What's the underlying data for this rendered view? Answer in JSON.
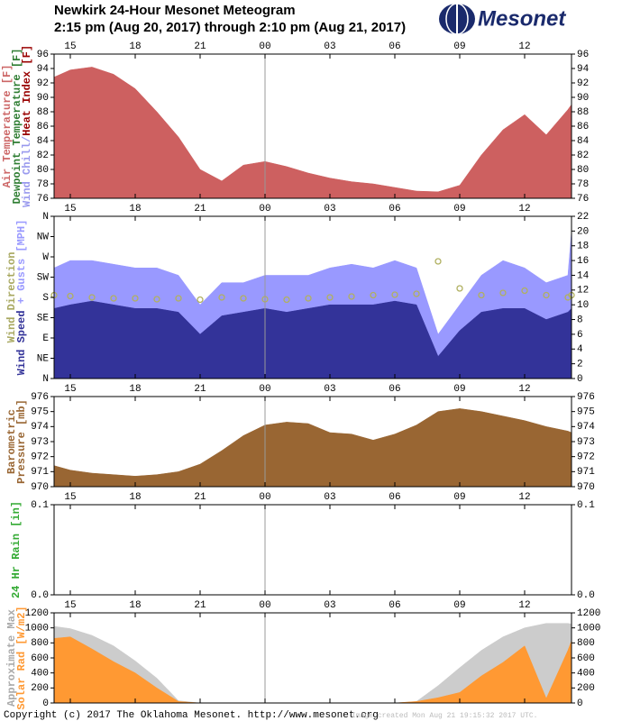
{
  "header": {
    "title": "Newkirk 24-Hour Mesonet Meteogram",
    "subtitle": "2:15 pm (Aug 20, 2017) through 2:10 pm (Aug 21, 2017)",
    "logo": "Mesonet"
  },
  "footer": {
    "copyright": "Copyright (c) 2017 The Oklahoma Mesonet. http://www.mesonet.org",
    "created": "Image created Mon Aug 21 19:15:32 2017 UTC."
  },
  "chart_data": [
    {
      "type": "area",
      "ylabel": [
        [
          {
            "text": "Air Temperature [F]",
            "color": "#cc6666"
          }
        ],
        [
          {
            "text": "Dewpoint Temperature [F]",
            "color": "#2e7d32"
          }
        ],
        [
          {
            "text": "Wind Chill/",
            "color": "#9999ee"
          },
          {
            "text": "Heat Index [F]",
            "color": "#990000"
          }
        ]
      ],
      "x": [
        14.25,
        15,
        16,
        17,
        18,
        19,
        20,
        21,
        22,
        23,
        24,
        25,
        26,
        27,
        28,
        29,
        30,
        31,
        32,
        33,
        34,
        35,
        36,
        37,
        38,
        38.1667
      ],
      "xlim": [
        14.25,
        38.1667
      ],
      "xticks": [
        15,
        18,
        21,
        {
          "value": 24,
          "label": "00"
        },
        {
          "value": 27,
          "label": "03"
        },
        {
          "value": 30,
          "label": "06"
        },
        {
          "value": 33,
          "label": "09"
        },
        {
          "value": 36,
          "label": "12"
        }
      ],
      "midnight_line": 24,
      "ylim": [
        76,
        96
      ],
      "yticks": [
        76,
        78,
        80,
        82,
        84,
        86,
        88,
        90,
        92,
        94,
        96
      ],
      "series": [
        {
          "name": "Air Temperature",
          "color": "#cd6060",
          "values": [
            92.8,
            93.8,
            94.2,
            93.2,
            91.2,
            88,
            84.5,
            80,
            78.4,
            80.6,
            81.1,
            80.4,
            79.5,
            78.8,
            78.3,
            78,
            77.5,
            77,
            76.9,
            77.8,
            82,
            85.5,
            87.6,
            84.8,
            88.3,
            89
          ]
        }
      ]
    },
    {
      "type": "area",
      "ylabel": [
        [
          {
            "text": "Wind Direction",
            "color": "#a8a860"
          }
        ],
        [
          {
            "text": "Wind Speed",
            "color": "#333399"
          },
          {
            "text": " + Gusts [MPH]",
            "color": "#9999ff"
          }
        ]
      ],
      "x": [
        14.25,
        15,
        16,
        17,
        18,
        19,
        20,
        21,
        22,
        23,
        24,
        25,
        26,
        27,
        28,
        29,
        30,
        31,
        32,
        33,
        34,
        35,
        36,
        37,
        38,
        38.1667
      ],
      "xlim": [
        14.25,
        38.1667
      ],
      "xticks": [
        15,
        18,
        21,
        {
          "value": 24,
          "label": "00"
        },
        {
          "value": 27,
          "label": "03"
        },
        {
          "value": 30,
          "label": "06"
        },
        {
          "value": 33,
          "label": "09"
        },
        {
          "value": 36,
          "label": "12"
        }
      ],
      "midnight_line": 24,
      "ylim": [
        0,
        360
      ],
      "yticks": [
        {
          "value": 0,
          "label": "N"
        },
        {
          "value": 45,
          "label": "NE"
        },
        {
          "value": 90,
          "label": "E"
        },
        {
          "value": 135,
          "label": "SE"
        },
        {
          "value": 180,
          "label": "S"
        },
        {
          "value": 225,
          "label": "SW"
        },
        {
          "value": 270,
          "label": "W"
        },
        {
          "value": 315,
          "label": "NW"
        },
        {
          "value": 360,
          "label": "N"
        }
      ],
      "y2lim": [
        0,
        22
      ],
      "y2ticks": [
        0,
        2,
        4,
        6,
        8,
        10,
        12,
        14,
        16,
        18,
        20,
        22
      ],
      "series": [
        {
          "name": "Gusts",
          "color": "#9999ff",
          "axis": "y2",
          "values": [
            15,
            16,
            16,
            15.5,
            15,
            15,
            14,
            10,
            13,
            13,
            14,
            14,
            14,
            15,
            15.5,
            15,
            16,
            15,
            6,
            10,
            14,
            16,
            15,
            13,
            14,
            20
          ]
        },
        {
          "name": "Wind Speed",
          "color": "#333399",
          "axis": "y2",
          "values": [
            9.5,
            10,
            10.5,
            10,
            9.5,
            9.5,
            9,
            6,
            8.5,
            9,
            9.5,
            9,
            9.5,
            10,
            10,
            10,
            10.5,
            10,
            3,
            6.5,
            9,
            9.5,
            9.5,
            8,
            9,
            9.5
          ]
        },
        {
          "name": "Wind Direction",
          "color": "#b0b060",
          "type": "scatter",
          "values": [
            185,
            183,
            180,
            178,
            178,
            176,
            178,
            175,
            180,
            178,
            176,
            175,
            178,
            180,
            182,
            185,
            186,
            188,
            260,
            200,
            185,
            190,
            195,
            185,
            180,
            185
          ]
        }
      ]
    },
    {
      "type": "area",
      "ylabel": [
        [
          {
            "text": "Barometric",
            "color": "#996633"
          }
        ],
        [
          {
            "text": "Pressure [mb]",
            "color": "#996633"
          }
        ]
      ],
      "x": [
        14.25,
        15,
        16,
        17,
        18,
        19,
        20,
        21,
        22,
        23,
        24,
        25,
        26,
        27,
        28,
        29,
        30,
        31,
        32,
        33,
        34,
        35,
        36,
        37,
        38,
        38.1667
      ],
      "xlim": [
        14.25,
        38.1667
      ],
      "xticks": [
        15,
        18,
        21,
        {
          "value": 24,
          "label": "00"
        },
        {
          "value": 27,
          "label": "03"
        },
        {
          "value": 30,
          "label": "06"
        },
        {
          "value": 33,
          "label": "09"
        },
        {
          "value": 36,
          "label": "12"
        }
      ],
      "midnight_line": 24,
      "ylim": [
        970,
        976
      ],
      "yticks": [
        970,
        971,
        972,
        973,
        974,
        975,
        976
      ],
      "series": [
        {
          "name": "Pressure",
          "color": "#996633",
          "values": [
            971.4,
            971.1,
            970.9,
            970.8,
            970.7,
            970.8,
            971,
            971.5,
            972.4,
            973.4,
            974.1,
            974.3,
            974.2,
            973.6,
            973.5,
            973.1,
            973.5,
            974.1,
            975,
            975.2,
            975,
            974.7,
            974.4,
            974,
            973.7,
            973.6
          ]
        }
      ]
    },
    {
      "type": "area",
      "ylabel": [
        [
          {
            "text": "24 Hr Rain [in]",
            "color": "#33aa33"
          }
        ]
      ],
      "x": [
        14.25,
        15,
        16,
        17,
        18,
        19,
        20,
        21,
        22,
        23,
        24,
        25,
        26,
        27,
        28,
        29,
        30,
        31,
        32,
        33,
        34,
        35,
        36,
        37,
        38,
        38.1667
      ],
      "xlim": [
        14.25,
        38.1667
      ],
      "xticks": [
        15,
        18,
        21,
        {
          "value": 24,
          "label": "00"
        },
        {
          "value": 27,
          "label": "03"
        },
        {
          "value": 30,
          "label": "06"
        },
        {
          "value": 33,
          "label": "09"
        },
        {
          "value": 36,
          "label": "12"
        }
      ],
      "midnight_line": 24,
      "ylim": [
        0,
        0.1
      ],
      "yticks": [
        {
          "value": 0,
          "label": "0.0"
        },
        0.1
      ],
      "series": [
        {
          "name": "24 Hr Rain",
          "color": "#33aa33",
          "values": [
            0,
            0,
            0,
            0,
            0,
            0,
            0,
            0,
            0,
            0,
            0,
            0,
            0,
            0,
            0,
            0,
            0,
            0,
            0,
            0,
            0,
            0,
            0,
            0,
            0,
            0
          ]
        }
      ]
    },
    {
      "type": "area",
      "ylabel": [
        [
          {
            "text": "Approximate Max",
            "color": "#aaaaaa"
          }
        ],
        [
          {
            "text": "Solar Rad [W/m2]",
            "color": "#ff9933"
          }
        ]
      ],
      "x": [
        14.25,
        15,
        16,
        17,
        18,
        19,
        20,
        21,
        22,
        23,
        24,
        25,
        26,
        27,
        28,
        29,
        30,
        31,
        32,
        33,
        34,
        35,
        36,
        37,
        38,
        38.1667
      ],
      "xlim": [
        14.25,
        38.1667
      ],
      "xticks": [
        15,
        18,
        21,
        {
          "value": 24,
          "label": "00"
        },
        {
          "value": 27,
          "label": "03"
        },
        {
          "value": 30,
          "label": "06"
        },
        {
          "value": 33,
          "label": "09"
        },
        {
          "value": 36,
          "label": "12"
        }
      ],
      "midnight_line": 24,
      "ylim": [
        0,
        1200
      ],
      "yticks": [
        0,
        200,
        400,
        600,
        800,
        1000,
        1200
      ],
      "series": [
        {
          "name": "Approximate Max",
          "color": "#cccccc",
          "values": [
            1020,
            990,
            900,
            760,
            560,
            330,
            30,
            0,
            0,
            0,
            0,
            0,
            0,
            0,
            0,
            0,
            0,
            20,
            230,
            470,
            700,
            880,
            1000,
            1060,
            1060,
            1050
          ]
        },
        {
          "name": "Solar Rad",
          "color": "#ff9933",
          "values": [
            860,
            880,
            720,
            550,
            400,
            200,
            20,
            0,
            0,
            0,
            0,
            0,
            0,
            0,
            0,
            0,
            0,
            20,
            70,
            140,
            360,
            540,
            760,
            60,
            700,
            830
          ]
        }
      ]
    }
  ]
}
